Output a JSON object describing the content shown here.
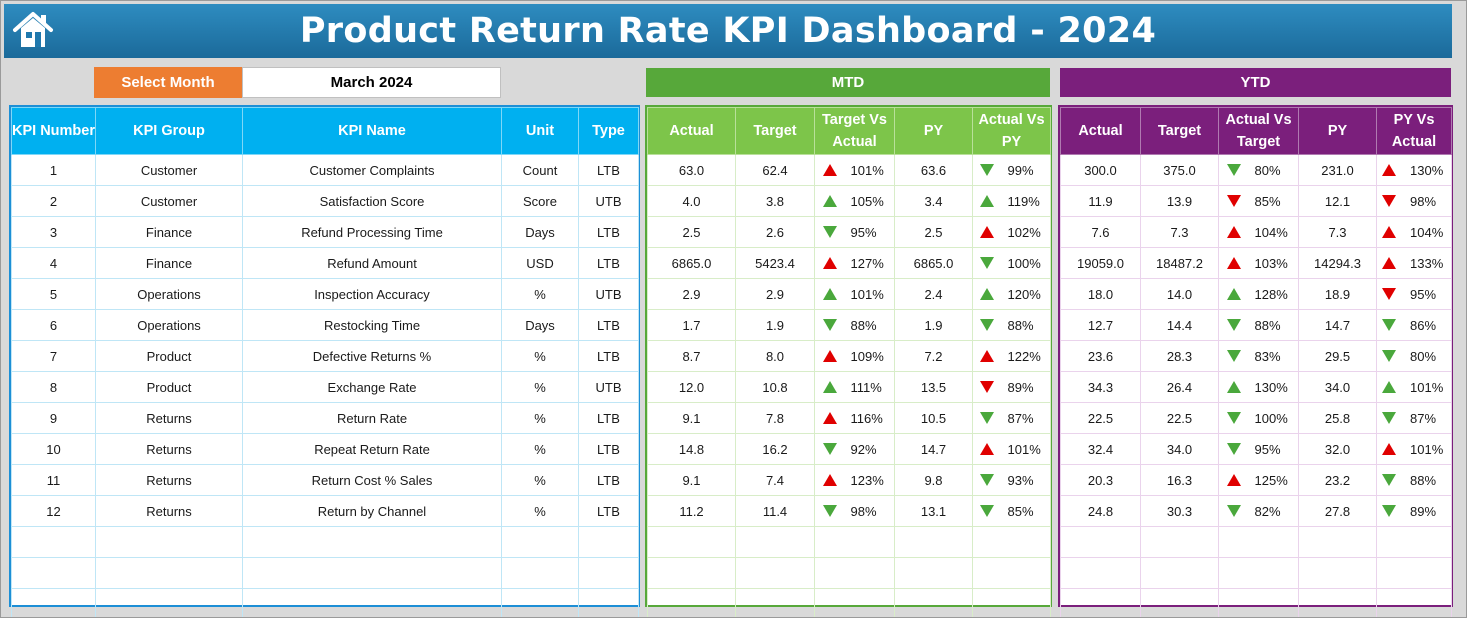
{
  "title": "Product Return Rate KPI Dashboard - 2024",
  "month_selector": {
    "label": "Select Month",
    "value": "March 2024"
  },
  "banners": {
    "mtd": "MTD",
    "ytd": "YTD"
  },
  "colors": {
    "title_bar": "#1f78ad",
    "kpi_header": "#00b0f0",
    "mtd_header": "#7dc54a",
    "ytd_header": "#7b1f7c",
    "select_label": "#ed7d31",
    "arrow_green": "#4aa83c",
    "arrow_red": "#e00000"
  },
  "kpi_headers": [
    "KPI Number",
    "KPI Group",
    "KPI Name",
    "Unit",
    "Type"
  ],
  "mtd_headers": [
    "Actual",
    "Target",
    "Target Vs Actual",
    "PY",
    "Actual Vs PY"
  ],
  "ytd_headers": [
    "Actual",
    "Target",
    "Actual Vs Target",
    "PY",
    "PY Vs Actual"
  ],
  "rows": [
    {
      "num": "1",
      "group": "Customer",
      "name": "Customer Complaints",
      "unit": "Count",
      "type": "LTB",
      "mtd": {
        "actual": "63.0",
        "target": "62.4",
        "tva": {
          "dir": "up-red",
          "pct": "101%"
        },
        "py": "63.6",
        "avp": {
          "dir": "down-green",
          "pct": "99%"
        }
      },
      "ytd": {
        "actual": "300.0",
        "target": "375.0",
        "avt": {
          "dir": "down-green",
          "pct": "80%"
        },
        "py": "231.0",
        "pva": {
          "dir": "up-red",
          "pct": "130%"
        }
      }
    },
    {
      "num": "2",
      "group": "Customer",
      "name": "Satisfaction Score",
      "unit": "Score",
      "type": "UTB",
      "mtd": {
        "actual": "4.0",
        "target": "3.8",
        "tva": {
          "dir": "up-green",
          "pct": "105%"
        },
        "py": "3.4",
        "avp": {
          "dir": "up-green",
          "pct": "119%"
        }
      },
      "ytd": {
        "actual": "11.9",
        "target": "13.9",
        "avt": {
          "dir": "down-red",
          "pct": "85%"
        },
        "py": "12.1",
        "pva": {
          "dir": "down-red",
          "pct": "98%"
        }
      }
    },
    {
      "num": "3",
      "group": "Finance",
      "name": "Refund Processing Time",
      "unit": "Days",
      "type": "LTB",
      "mtd": {
        "actual": "2.5",
        "target": "2.6",
        "tva": {
          "dir": "down-green",
          "pct": "95%"
        },
        "py": "2.5",
        "avp": {
          "dir": "up-red",
          "pct": "102%"
        }
      },
      "ytd": {
        "actual": "7.6",
        "target": "7.3",
        "avt": {
          "dir": "up-red",
          "pct": "104%"
        },
        "py": "7.3",
        "pva": {
          "dir": "up-red",
          "pct": "104%"
        }
      }
    },
    {
      "num": "4",
      "group": "Finance",
      "name": "Refund Amount",
      "unit": "USD",
      "type": "LTB",
      "mtd": {
        "actual": "6865.0",
        "target": "5423.4",
        "tva": {
          "dir": "up-red",
          "pct": "127%"
        },
        "py": "6865.0",
        "avp": {
          "dir": "down-green",
          "pct": "100%"
        }
      },
      "ytd": {
        "actual": "19059.0",
        "target": "18487.2",
        "avt": {
          "dir": "up-red",
          "pct": "103%"
        },
        "py": "14294.3",
        "pva": {
          "dir": "up-red",
          "pct": "133%"
        }
      }
    },
    {
      "num": "5",
      "group": "Operations",
      "name": "Inspection Accuracy",
      "unit": "%",
      "type": "UTB",
      "mtd": {
        "actual": "2.9",
        "target": "2.9",
        "tva": {
          "dir": "up-green",
          "pct": "101%"
        },
        "py": "2.4",
        "avp": {
          "dir": "up-green",
          "pct": "120%"
        }
      },
      "ytd": {
        "actual": "18.0",
        "target": "14.0",
        "avt": {
          "dir": "up-green",
          "pct": "128%"
        },
        "py": "18.9",
        "pva": {
          "dir": "down-red",
          "pct": "95%"
        }
      }
    },
    {
      "num": "6",
      "group": "Operations",
      "name": "Restocking Time",
      "unit": "Days",
      "type": "LTB",
      "mtd": {
        "actual": "1.7",
        "target": "1.9",
        "tva": {
          "dir": "down-green",
          "pct": "88%"
        },
        "py": "1.9",
        "avp": {
          "dir": "down-green",
          "pct": "88%"
        }
      },
      "ytd": {
        "actual": "12.7",
        "target": "14.4",
        "avt": {
          "dir": "down-green",
          "pct": "88%"
        },
        "py": "14.7",
        "pva": {
          "dir": "down-green",
          "pct": "86%"
        }
      }
    },
    {
      "num": "7",
      "group": "Product",
      "name": "Defective Returns %",
      "unit": "%",
      "type": "LTB",
      "mtd": {
        "actual": "8.7",
        "target": "8.0",
        "tva": {
          "dir": "up-red",
          "pct": "109%"
        },
        "py": "7.2",
        "avp": {
          "dir": "up-red",
          "pct": "122%"
        }
      },
      "ytd": {
        "actual": "23.6",
        "target": "28.3",
        "avt": {
          "dir": "down-green",
          "pct": "83%"
        },
        "py": "29.5",
        "pva": {
          "dir": "down-green",
          "pct": "80%"
        }
      }
    },
    {
      "num": "8",
      "group": "Product",
      "name": "Exchange Rate",
      "unit": "%",
      "type": "UTB",
      "mtd": {
        "actual": "12.0",
        "target": "10.8",
        "tva": {
          "dir": "up-green",
          "pct": "111%"
        },
        "py": "13.5",
        "avp": {
          "dir": "down-red",
          "pct": "89%"
        }
      },
      "ytd": {
        "actual": "34.3",
        "target": "26.4",
        "avt": {
          "dir": "up-green",
          "pct": "130%"
        },
        "py": "34.0",
        "pva": {
          "dir": "up-green",
          "pct": "101%"
        }
      }
    },
    {
      "num": "9",
      "group": "Returns",
      "name": "Return Rate",
      "unit": "%",
      "type": "LTB",
      "mtd": {
        "actual": "9.1",
        "target": "7.8",
        "tva": {
          "dir": "up-red",
          "pct": "116%"
        },
        "py": "10.5",
        "avp": {
          "dir": "down-green",
          "pct": "87%"
        }
      },
      "ytd": {
        "actual": "22.5",
        "target": "22.5",
        "avt": {
          "dir": "down-green",
          "pct": "100%"
        },
        "py": "25.8",
        "pva": {
          "dir": "down-green",
          "pct": "87%"
        }
      }
    },
    {
      "num": "10",
      "group": "Returns",
      "name": "Repeat Return Rate",
      "unit": "%",
      "type": "LTB",
      "mtd": {
        "actual": "14.8",
        "target": "16.2",
        "tva": {
          "dir": "down-green",
          "pct": "92%"
        },
        "py": "14.7",
        "avp": {
          "dir": "up-red",
          "pct": "101%"
        }
      },
      "ytd": {
        "actual": "32.4",
        "target": "34.0",
        "avt": {
          "dir": "down-green",
          "pct": "95%"
        },
        "py": "32.0",
        "pva": {
          "dir": "up-red",
          "pct": "101%"
        }
      }
    },
    {
      "num": "11",
      "group": "Returns",
      "name": "Return Cost % Sales",
      "unit": "%",
      "type": "LTB",
      "mtd": {
        "actual": "9.1",
        "target": "7.4",
        "tva": {
          "dir": "up-red",
          "pct": "123%"
        },
        "py": "9.8",
        "avp": {
          "dir": "down-green",
          "pct": "93%"
        }
      },
      "ytd": {
        "actual": "20.3",
        "target": "16.3",
        "avt": {
          "dir": "up-red",
          "pct": "125%"
        },
        "py": "23.2",
        "pva": {
          "dir": "down-green",
          "pct": "88%"
        }
      }
    },
    {
      "num": "12",
      "group": "Returns",
      "name": "Return by Channel",
      "unit": "%",
      "type": "LTB",
      "mtd": {
        "actual": "11.2",
        "target": "11.4",
        "tva": {
          "dir": "down-green",
          "pct": "98%"
        },
        "py": "13.1",
        "avp": {
          "dir": "down-green",
          "pct": "85%"
        }
      },
      "ytd": {
        "actual": "24.8",
        "target": "30.3",
        "avt": {
          "dir": "down-green",
          "pct": "82%"
        },
        "py": "27.8",
        "pva": {
          "dir": "down-green",
          "pct": "89%"
        }
      }
    }
  ],
  "empty_rows": 3
}
